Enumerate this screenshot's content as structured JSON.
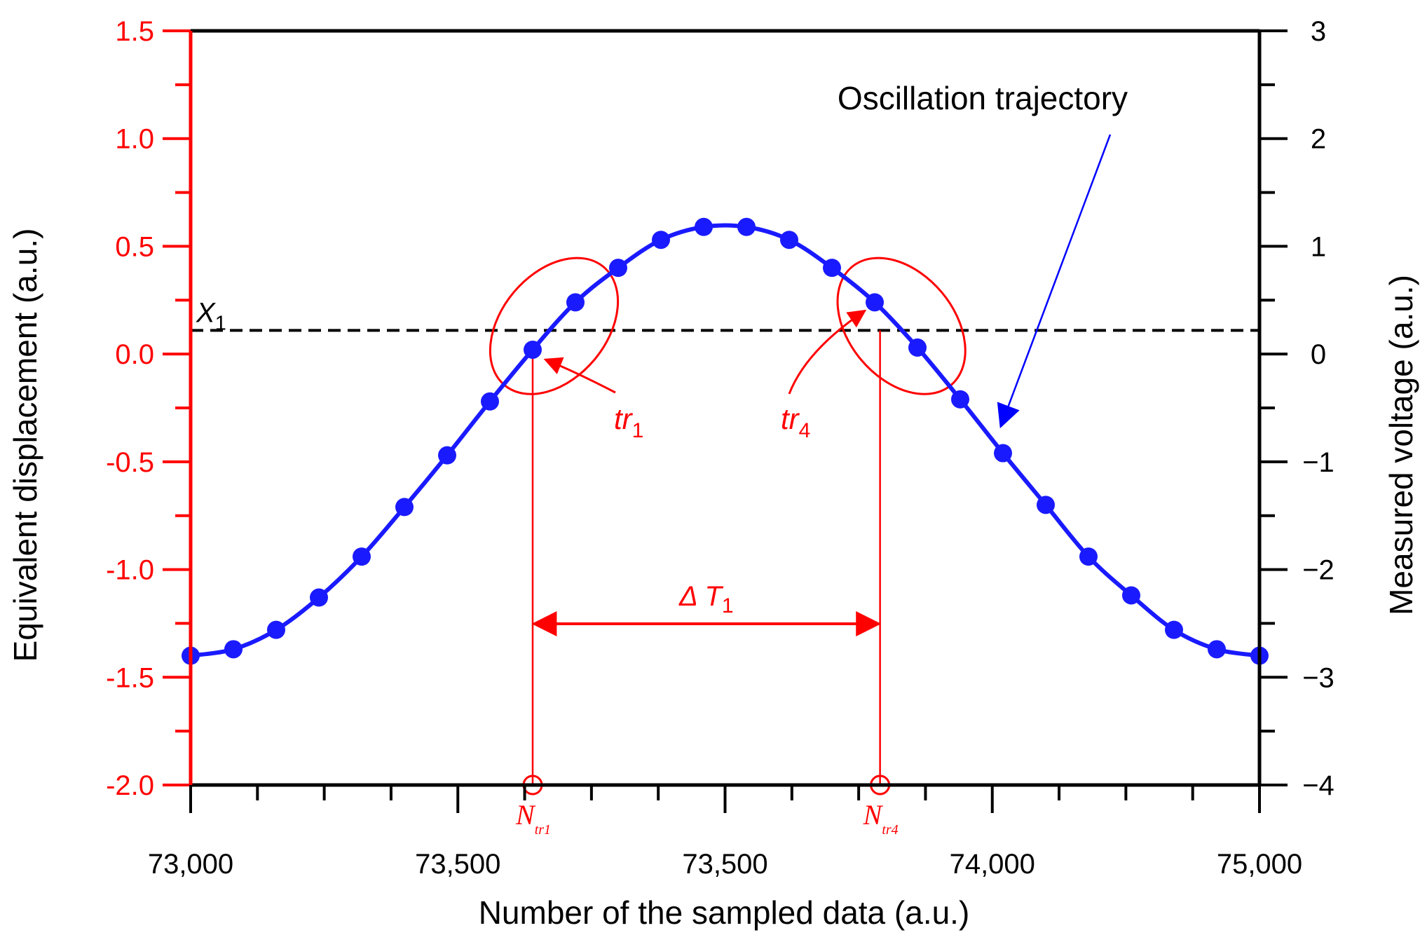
{
  "chart_data": {
    "type": "scatter",
    "title": "",
    "xlabel": "Number of the sampled data (a.u.)",
    "ylabel_left": "Equivalent displacement (a.u.)",
    "ylabel_right": "Measured voltage (a.u.)",
    "xlim": [
      73000,
      75000
    ],
    "ylim_left": [
      -2.0,
      1.5
    ],
    "ylim_right": [
      -4,
      3
    ],
    "x_tick_labels": [
      "73,000",
      "73,500",
      "73,500",
      "74,000",
      "75,000"
    ],
    "y_left_ticks": [
      {
        "value": 1.5,
        "label": "1.5"
      },
      {
        "value": 1.0,
        "label": "1.0"
      },
      {
        "value": 0.5,
        "label": "0.5"
      },
      {
        "value": 0.0,
        "label": "0.0"
      },
      {
        "value": -0.5,
        "label": "-0.5"
      },
      {
        "value": -1.0,
        "label": "-1.0"
      },
      {
        "value": -1.5,
        "label": "-1.5"
      },
      {
        "value": -2.0,
        "label": "-2.0"
      }
    ],
    "y_right_ticks": [
      {
        "value": 3,
        "label": "3"
      },
      {
        "value": 2,
        "label": "2"
      },
      {
        "value": 1,
        "label": "1"
      },
      {
        "value": 0,
        "label": "0"
      },
      {
        "value": -1,
        "label": "−1"
      },
      {
        "value": -2,
        "label": "−2"
      },
      {
        "value": -3,
        "label": "−3"
      },
      {
        "value": -4,
        "label": "−4"
      }
    ],
    "series": [
      {
        "name": "Oscillation trajectory",
        "x": [
          73000,
          73080,
          73160,
          73240,
          73320,
          73400,
          73480,
          73560,
          73640,
          73720,
          73800,
          73880,
          73960,
          74040,
          74120,
          74200,
          74280,
          74360,
          74440,
          74520,
          74600,
          74680,
          74760,
          74840,
          74920,
          75000
        ],
        "y": [
          -1.4,
          -1.37,
          -1.28,
          -1.13,
          -0.94,
          -0.71,
          -0.47,
          -0.22,
          0.02,
          0.24,
          0.4,
          0.53,
          0.59,
          0.59,
          0.53,
          0.4,
          0.24,
          0.03,
          -0.21,
          -0.46,
          -0.7,
          -0.94,
          -1.12,
          -1.28,
          -1.37,
          -1.4
        ]
      }
    ],
    "threshold": {
      "label": "X",
      "subscript": "1",
      "y": 0.11
    },
    "markers": [
      {
        "label": "N",
        "subscript": "tr1",
        "x": 73640
      },
      {
        "label": "N",
        "subscript": "tr4",
        "x": 74290
      }
    ],
    "annotations": {
      "trajectory_label": "Oscillation trajectory",
      "tr1_label": "tr",
      "tr1_sub": "1",
      "tr4_label": "tr",
      "tr4_sub": "4",
      "delta_label": "Δ T",
      "delta_sub": "1"
    },
    "colors": {
      "series": "#1a1aff",
      "left_axis": "#ff0000",
      "right_axis": "#000000",
      "annotation": "#ff0000",
      "threshold": "#000000",
      "arrow_blue": "#0000ff"
    }
  }
}
